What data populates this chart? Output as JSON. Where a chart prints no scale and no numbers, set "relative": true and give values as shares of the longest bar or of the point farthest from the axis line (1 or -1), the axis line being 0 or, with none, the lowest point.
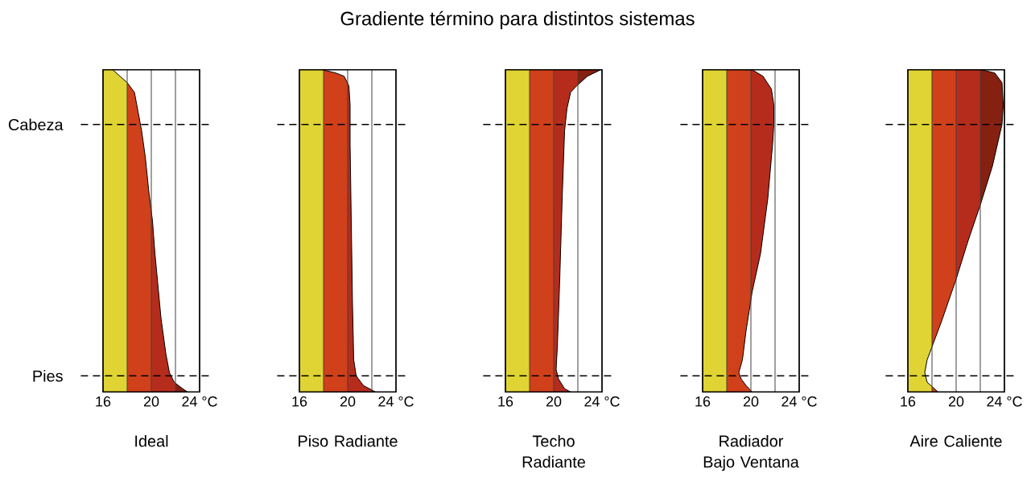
{
  "chart_data": [
    {
      "type": "line",
      "relative": true,
      "xlabel": "Ideal",
      "xlim": [
        16,
        24
      ],
      "xticks": [
        16,
        {
          "value": 18,
          "label": null
        },
        20,
        {
          "value": 22,
          "label": null
        },
        {
          "value": 24,
          "label": "24 °C"
        }
      ],
      "grid": "x",
      "series": [
        {
          "color": "#000000",
          "x": [
            16.8,
            18.0,
            18.6,
            18.9,
            19.2,
            19.5,
            19.8,
            20.1,
            20.3,
            20.6,
            20.8,
            21.2,
            21.5,
            21.9,
            22.6,
            23.0
          ],
          "values": [
            1.0,
            0.96,
            0.93,
            0.87,
            0.81,
            0.73,
            0.62,
            0.53,
            0.43,
            0.31,
            0.23,
            0.12,
            0.06,
            0.03,
            0.01,
            0.0
          ]
        }
      ],
      "bands": [
        {
          "axis": "x",
          "from": 16,
          "to": 18,
          "color": "#e0d434"
        },
        {
          "axis": "x",
          "from": 18,
          "to": 20,
          "color": "#d0401a"
        },
        {
          "axis": "x",
          "from": 20,
          "to": 22,
          "color": "#b62c1c"
        },
        {
          "axis": "x",
          "from": 22,
          "to": 24,
          "color": "#862010"
        }
      ],
      "ref_lines": [
        {
          "axis": "y",
          "value": 0.83,
          "label": "Cabeza",
          "line_style": "dashed"
        },
        {
          "axis": "y",
          "value": 0.05,
          "label": "Pies",
          "line_style": "dashed"
        }
      ]
    },
    {
      "type": "line",
      "relative": true,
      "xlabel": "Piso Radiante",
      "xlim": [
        16,
        24
      ],
      "xticks": [
        16,
        {
          "value": 18,
          "label": null
        },
        20,
        {
          "value": 22,
          "label": null
        },
        {
          "value": 24,
          "label": "24 °C"
        }
      ],
      "grid": "x",
      "series": [
        {
          "color": "#000000",
          "x": [
            17.9,
            19.0,
            19.7,
            20.1,
            20.2,
            20.2,
            20.3,
            20.4,
            20.5,
            20.7,
            21.3,
            22.3
          ],
          "values": [
            1.0,
            0.99,
            0.98,
            0.95,
            0.89,
            0.77,
            0.52,
            0.27,
            0.1,
            0.05,
            0.02,
            0.0
          ]
        }
      ],
      "bands": [
        {
          "axis": "x",
          "from": 16,
          "to": 18,
          "color": "#e0d434"
        },
        {
          "axis": "x",
          "from": 18,
          "to": 20,
          "color": "#d0401a"
        },
        {
          "axis": "x",
          "from": 20,
          "to": 22,
          "color": "#b62c1c"
        },
        {
          "axis": "x",
          "from": 22,
          "to": 24,
          "color": "#862010"
        }
      ],
      "ref_lines": [
        {
          "axis": "y",
          "value": 0.83,
          "line_style": "dashed"
        },
        {
          "axis": "y",
          "value": 0.05,
          "line_style": "dashed"
        }
      ]
    },
    {
      "type": "line",
      "relative": true,
      "title": "Gradiente término para distintos sistemas",
      "xlabel": "Techo Radiante",
      "xlim": [
        16,
        24
      ],
      "xticks": [
        16,
        {
          "value": 18,
          "label": null
        },
        20,
        {
          "value": 22,
          "label": null
        },
        {
          "value": 24,
          "label": "24 °C"
        }
      ],
      "grid": "x",
      "series": [
        {
          "color": "#000000",
          "x": [
            23.9,
            22.8,
            21.9,
            21.4,
            21.1,
            20.9,
            20.7,
            20.5,
            20.3,
            20.2,
            20.4,
            20.9,
            21.4
          ],
          "values": [
            1.0,
            0.98,
            0.95,
            0.93,
            0.88,
            0.81,
            0.6,
            0.35,
            0.14,
            0.07,
            0.04,
            0.01,
            0.0
          ]
        }
      ],
      "bands": [
        {
          "axis": "x",
          "from": 16,
          "to": 18,
          "color": "#e0d434"
        },
        {
          "axis": "x",
          "from": 18,
          "to": 20,
          "color": "#d0401a"
        },
        {
          "axis": "x",
          "from": 20,
          "to": 22,
          "color": "#b62c1c"
        },
        {
          "axis": "x",
          "from": 22,
          "to": 24,
          "color": "#862010"
        }
      ],
      "ref_lines": [
        {
          "axis": "y",
          "value": 0.83,
          "line_style": "dashed"
        },
        {
          "axis": "y",
          "value": 0.05,
          "line_style": "dashed"
        }
      ]
    },
    {
      "type": "line",
      "relative": true,
      "xlabel": "Radiador Bajo Ventana",
      "xlim": [
        16,
        24
      ],
      "xticks": [
        16,
        {
          "value": 18,
          "label": null
        },
        20,
        {
          "value": 22,
          "label": null
        },
        {
          "value": 24,
          "label": "24 °C"
        }
      ],
      "grid": "x",
      "series": [
        {
          "color": "#000000",
          "x": [
            19.6,
            20.1,
            21.0,
            21.7,
            21.9,
            21.9,
            21.8,
            21.4,
            20.8,
            20.1,
            19.6,
            19.3,
            19.0,
            19.2,
            19.6,
            20.1
          ],
          "values": [
            1.0,
            1.0,
            0.98,
            0.94,
            0.89,
            0.83,
            0.77,
            0.6,
            0.43,
            0.31,
            0.19,
            0.1,
            0.06,
            0.04,
            0.02,
            0.0
          ]
        }
      ],
      "bands": [
        {
          "axis": "x",
          "from": 16,
          "to": 18,
          "color": "#e0d434"
        },
        {
          "axis": "x",
          "from": 18,
          "to": 20,
          "color": "#d0401a"
        },
        {
          "axis": "x",
          "from": 20,
          "to": 22,
          "color": "#b62c1c"
        }
      ],
      "ref_lines": [
        {
          "axis": "y",
          "value": 0.83,
          "line_style": "dashed"
        },
        {
          "axis": "y",
          "value": 0.05,
          "line_style": "dashed"
        }
      ]
    },
    {
      "type": "line",
      "relative": true,
      "xlabel": "Aire Caliente",
      "xlim": [
        16,
        24
      ],
      "xticks": [
        16,
        {
          "value": 18,
          "label": null
        },
        20,
        {
          "value": 22,
          "label": null
        },
        {
          "value": 24,
          "label": "24 °C"
        }
      ],
      "grid": "x",
      "series": [
        {
          "color": "#000000",
          "x": [
            22.1,
            23.2,
            23.8,
            23.9,
            23.8,
            23.0,
            22.0,
            21.0,
            20.0,
            18.8,
            18.1,
            17.6,
            17.4,
            17.6,
            18.2,
            18.5
          ],
          "values": [
            1.0,
            0.99,
            0.96,
            0.89,
            0.83,
            0.7,
            0.58,
            0.47,
            0.35,
            0.22,
            0.15,
            0.1,
            0.06,
            0.03,
            0.01,
            0.0
          ]
        }
      ],
      "bands": [
        {
          "axis": "x",
          "from": 16,
          "to": 18,
          "color": "#e0d434"
        },
        {
          "axis": "x",
          "from": 18,
          "to": 20,
          "color": "#d0401a"
        },
        {
          "axis": "x",
          "from": 20,
          "to": 22,
          "color": "#b62c1c"
        },
        {
          "axis": "x",
          "from": 22,
          "to": 24,
          "color": "#862010"
        }
      ],
      "ref_lines": [
        {
          "axis": "y",
          "value": 0.83,
          "line_style": "dashed"
        },
        {
          "axis": "y",
          "value": 0.05,
          "line_style": "dashed"
        }
      ]
    }
  ]
}
